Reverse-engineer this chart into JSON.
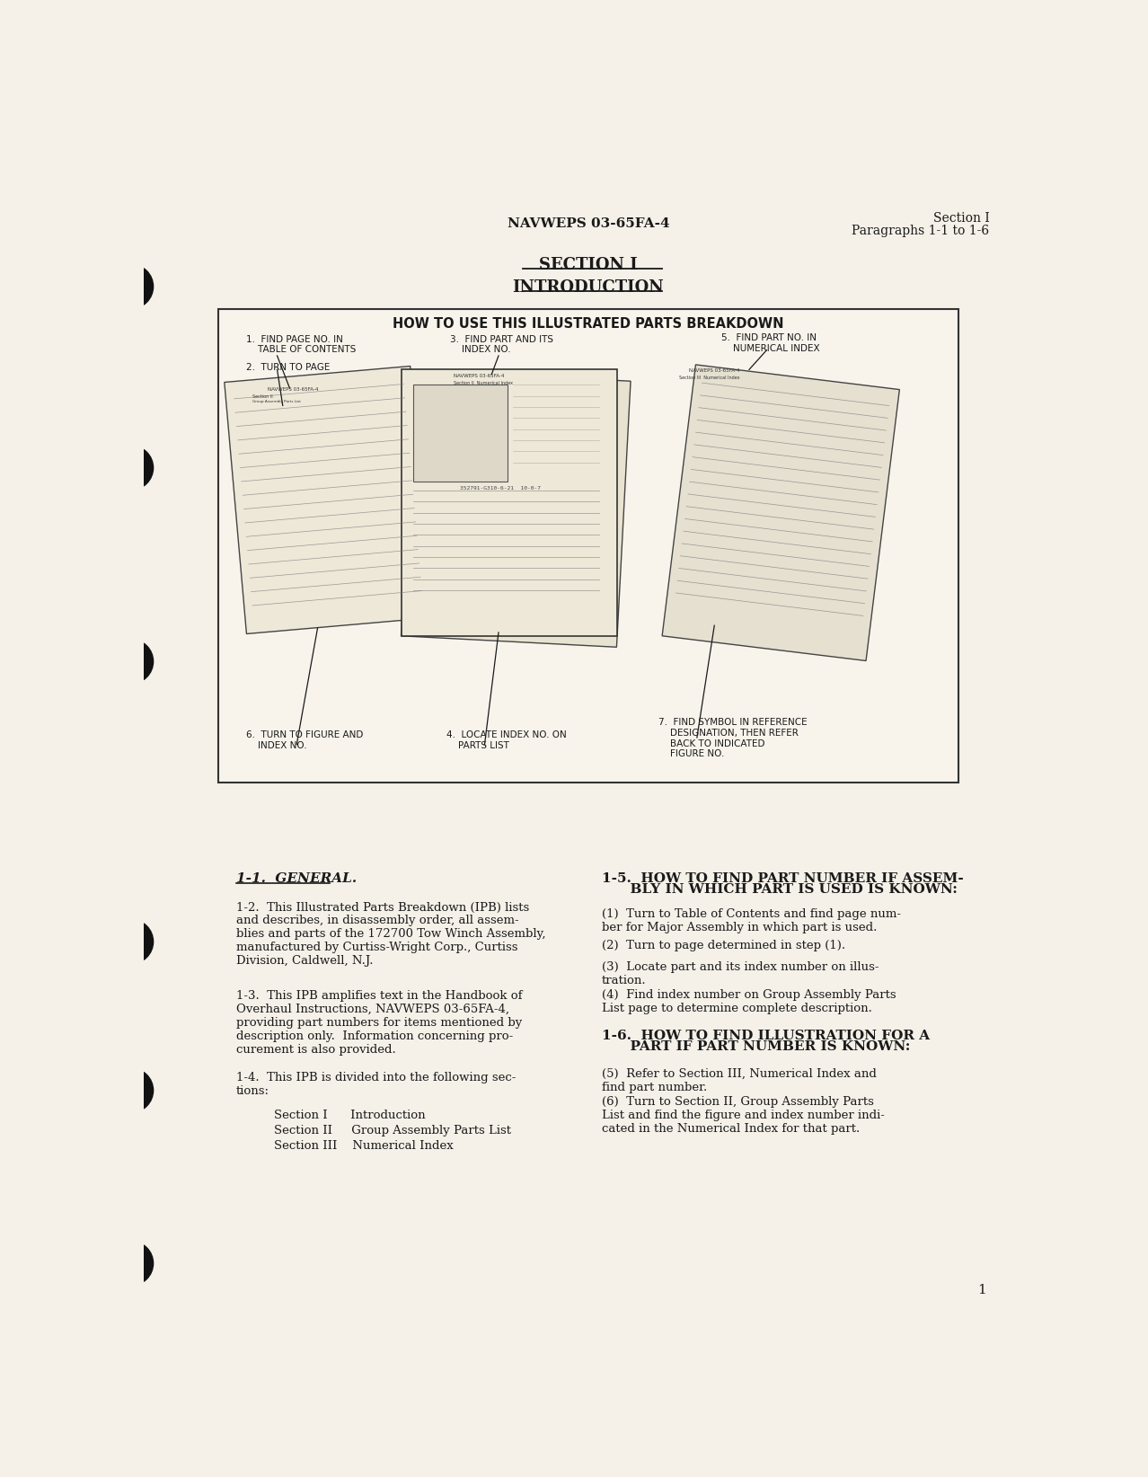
{
  "bg_color": "#f5f0e8",
  "text_color": "#1a1a1a",
  "header_center": "NAVWEPS 03-65FA-4",
  "header_right_line1": "Section I",
  "header_right_line2": "Paragraphs 1-1 to 1-6",
  "title_line1": "SECTION I",
  "title_line2": "INTRODUCTION",
  "box_title": "HOW TO USE THIS ILLUSTRATED PARTS BREAKDOWN",
  "label1": "1.  FIND PAGE NO. IN\n    TABLE OF CONTENTS",
  "label2": "2.  TURN TO PAGE",
  "label3": "3.  FIND PART AND ITS\n    INDEX NO.",
  "label5": "5.  FIND PART NO. IN\n    NUMERICAL INDEX",
  "label6": "6.  TURN TO FIGURE AND\n    INDEX NO.",
  "label4": "4.  LOCATE INDEX NO. ON\n    PARTS LIST",
  "label7": "7.  FIND SYMBOL IN REFERENCE\n    DESIGNATION, THEN REFER\n    BACK TO INDICATED\n    FIGURE NO.",
  "section_heading1": "1-1.  GENERAL.",
  "para12": "1-2.  This Illustrated Parts Breakdown (IPB) lists\nand describes, in disassembly order, all assem-\nblies and parts of the 172700 Tow Winch Assembly,\nmanufactured by Curtiss-Wright Corp., Curtiss\nDivision, Caldwell, N.J.",
  "para13": "1-3.  This IPB amplifies text in the Handbook of\nOverhaul Instructions, NAVWEPS 03-65FA-4,\nproviding part numbers for items mentioned by\ndescription only.  Information concerning pro-\ncurement is also provided.",
  "para14": "1-4.  This IPB is divided into the following sec-\ntions:",
  "sections_list": [
    "Section I      Introduction",
    "Section II     Group Assembly Parts List",
    "Section III    Numerical Index"
  ],
  "rh1_line1": "1-5.  HOW TO FIND PART NUMBER IF ASSEM-",
  "rh1_line2": "      BLY IN WHICH PART IS USED IS KNOWN:",
  "para15_1": "(1)  Turn to Table of Contents and find page num-\nber for Major Assembly in which part is used.",
  "para15_2": "(2)  Turn to page determined in step (1).",
  "para15_3": "(3)  Locate part and its index number on illus-\ntration.",
  "para15_4": "(4)  Find index number on Group Assembly Parts\nList page to determine complete description.",
  "rh2_line1": "1-6.  HOW TO FIND ILLUSTRATION FOR A",
  "rh2_line2": "      PART IF PART NUMBER IS KNOWN:",
  "para16_5": "(5)  Refer to Section III, Numerical Index and\nfind part number.",
  "para16_6": "(6)  Turn to Section II, Group Assembly Parts\nList and find the figure and index number indi-\ncated in the Numerical Index for that part.",
  "page_number": "1",
  "binding_circles_y": [
    158,
    420,
    700,
    1105,
    1320,
    1570
  ]
}
